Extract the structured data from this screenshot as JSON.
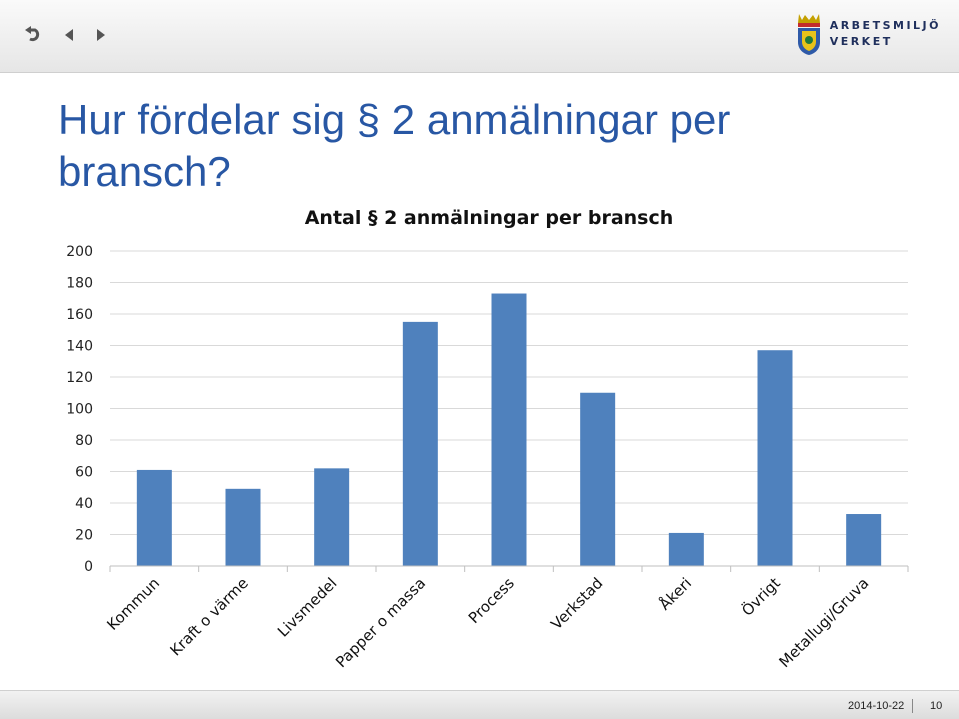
{
  "toolbar": {
    "logo_line1": "ARBETSMILJÖ",
    "logo_line2": "VERKET"
  },
  "slide": {
    "title_line1": "Hur fördelar sig § 2 anmälningar per",
    "title_line2": "bransch?"
  },
  "footer": {
    "date": "2014-10-22",
    "page": "10"
  },
  "colors": {
    "bar": "#4f81bd",
    "title": "#2857a4",
    "grid": "#d9d9d9"
  },
  "chart_data": {
    "type": "bar",
    "title": "Antal § 2 anmälningar per bransch",
    "categories": [
      "Kommun",
      "Kraft o värme",
      "Livsmedel",
      "Papper o massa",
      "Process",
      "Verkstad",
      "Åkeri",
      "Övrigt",
      "Metallugi/Gruva"
    ],
    "values": [
      61,
      49,
      62,
      155,
      173,
      110,
      21,
      137,
      33
    ],
    "ylim": [
      0,
      200
    ],
    "yticks": [
      0,
      20,
      40,
      60,
      80,
      100,
      120,
      140,
      160,
      180,
      200
    ],
    "grid": true,
    "legend": "none"
  }
}
